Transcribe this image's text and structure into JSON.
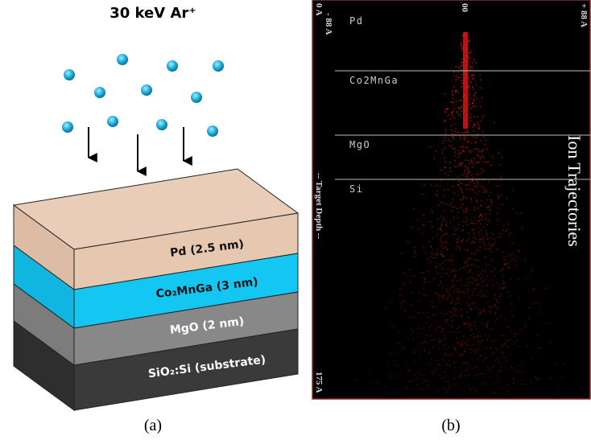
{
  "panel_a": {
    "title": "30 keV Ar⁺",
    "layers": [
      "Pd (2.5 nm)",
      "Co₂MnGa (3 nm)",
      "MgO (2 nm)",
      "SiO₂:Si (substrate)"
    ],
    "caption": "(a)"
  },
  "panel_b": {
    "layers": [
      "Pd",
      "Co2MnGa",
      "MgO",
      "Si"
    ],
    "title": "Ion Trajectories",
    "y_axis_label": "-- Target Depth --",
    "top_labels": [
      "0 A",
      "- 88 A",
      "00",
      "+ 88 A"
    ],
    "bottom_label": "175 A",
    "caption": "(b)"
  }
}
